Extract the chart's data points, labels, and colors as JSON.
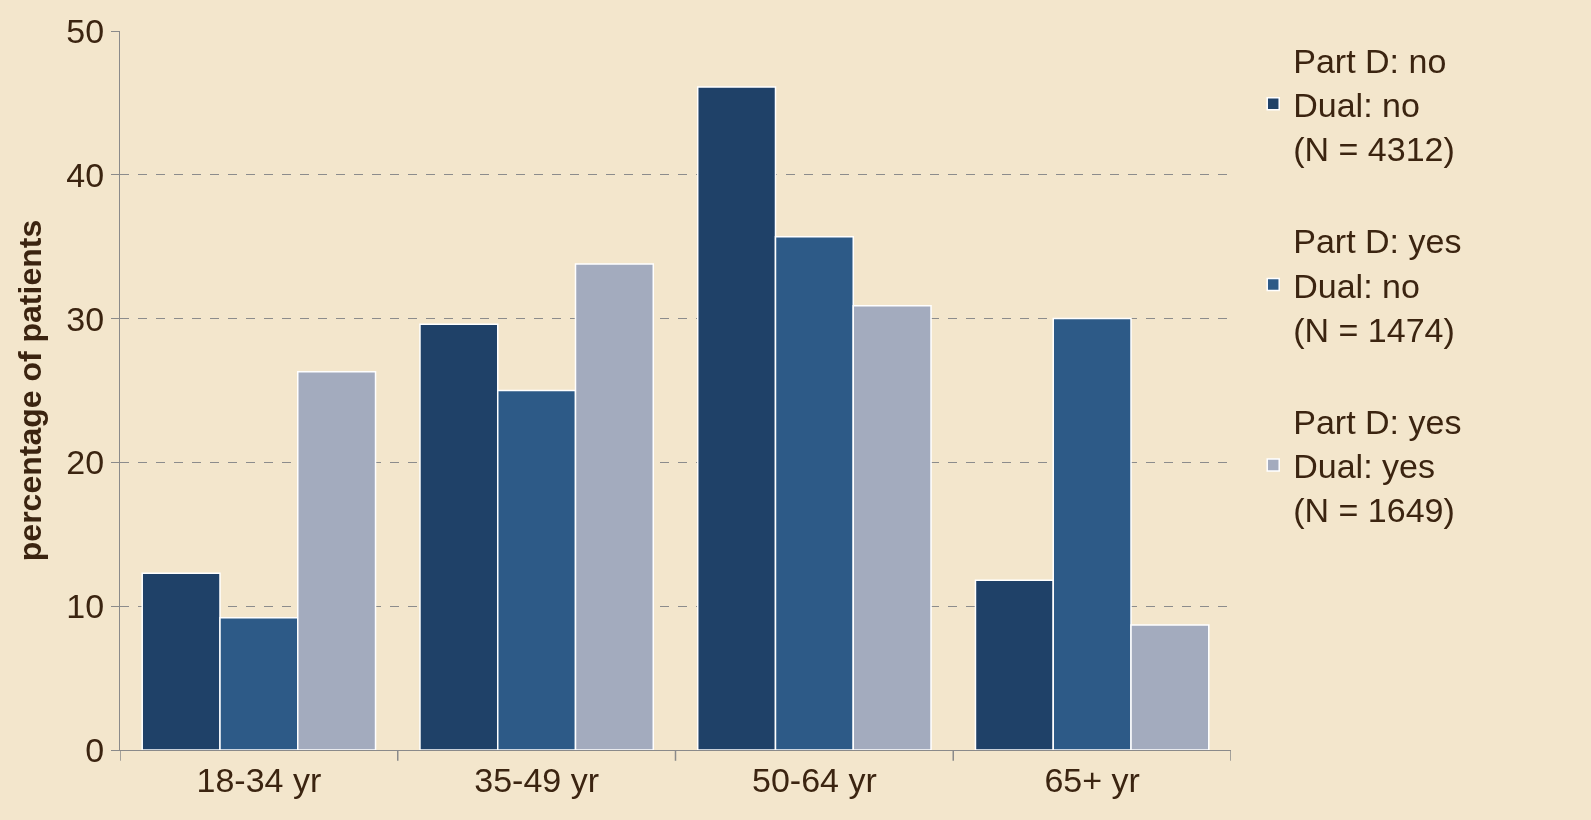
{
  "chart_data": {
    "type": "bar",
    "ylabel": "percentage of patients",
    "categories": [
      "18-34 yr",
      "35-49 yr",
      "50-64 yr",
      "65+ yr"
    ],
    "series": [
      {
        "name": "Part D: no\nDual: no\n(N = 4312)",
        "color": "#1f4168",
        "values": [
          12.3,
          29.6,
          46.1,
          11.8
        ]
      },
      {
        "name": "Part D: yes\nDual: no\n(N = 1474)",
        "color": "#2d5a87",
        "values": [
          9.2,
          25.0,
          35.7,
          30.0
        ]
      },
      {
        "name": "Part D: yes\nDual: yes\n(N = 1649)",
        "color": "#a3abbe",
        "values": [
          26.3,
          33.8,
          30.9,
          8.7
        ]
      }
    ],
    "ylim": [
      0,
      50
    ],
    "yticks": [
      0,
      10,
      20,
      30,
      40,
      50
    ],
    "grid": "y",
    "legend": "right"
  }
}
